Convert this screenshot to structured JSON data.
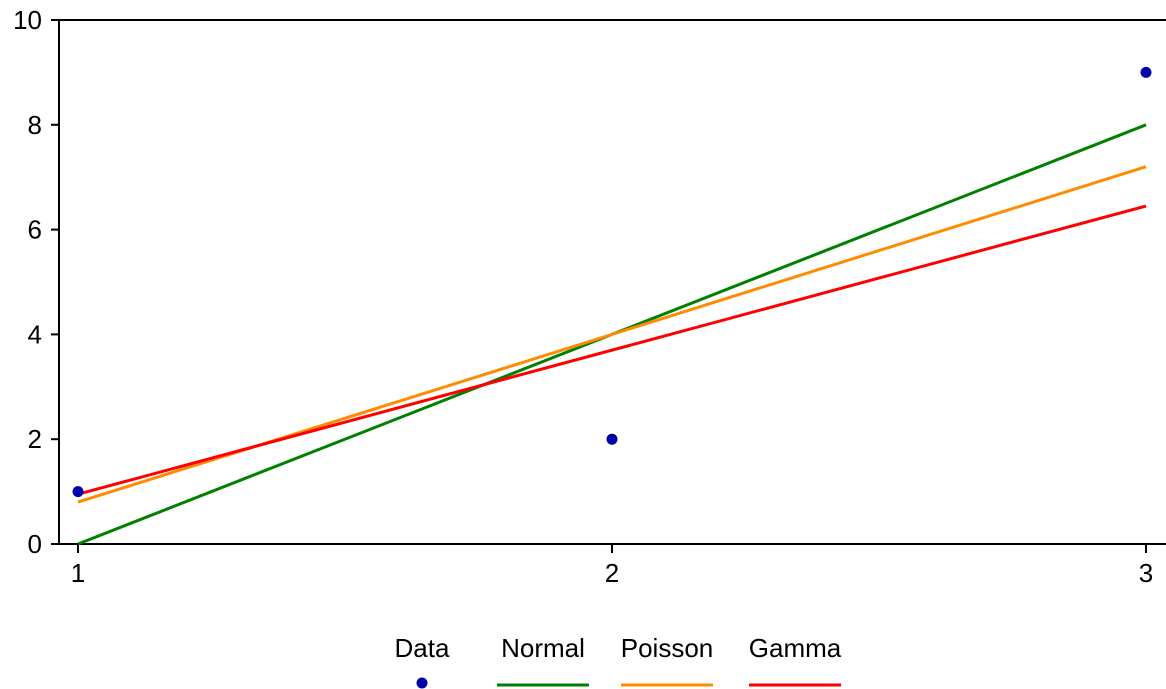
{
  "chart_data": {
    "type": "line",
    "x_ticks": [
      "1",
      "2",
      "3"
    ],
    "y_ticks": [
      "0",
      "2",
      "4",
      "6",
      "8",
      "10"
    ],
    "xlim": [
      1,
      3
    ],
    "ylim": [
      0,
      10
    ],
    "grid": false,
    "legend_position": "bottom-center",
    "points_series": {
      "name": "Data",
      "color": "#0000AA",
      "x": [
        1,
        2,
        3
      ],
      "y": [
        1,
        2,
        9
      ]
    },
    "line_series": [
      {
        "name": "Normal",
        "color": "#008000",
        "x": [
          1,
          2,
          3
        ],
        "y": [
          0,
          4,
          8
        ]
      },
      {
        "name": "Poisson",
        "color": "#FF8C00",
        "x": [
          1,
          2,
          3
        ],
        "y": [
          0.8,
          4,
          7.2
        ]
      },
      {
        "name": "Gamma",
        "color": "#FF0000",
        "x": [
          1,
          2,
          3
        ],
        "y": [
          0.95,
          3.7,
          6.45
        ]
      }
    ]
  }
}
